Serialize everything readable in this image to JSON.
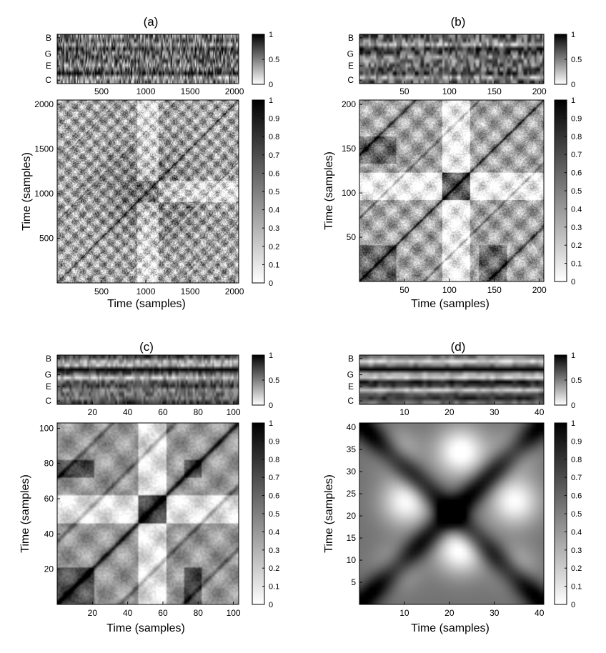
{
  "figure": {
    "panels": [
      {
        "label": "(a)",
        "x_ticks": [
          500,
          1000,
          1500,
          2000
        ],
        "y_ticks": [
          500,
          1000,
          1500,
          2000
        ],
        "axis_max": 2048,
        "note_labels": [
          "B",
          "G",
          "E",
          "C"
        ],
        "xlabel": "Time (samples)",
        "ylabel": "Time (samples)",
        "chroma_res": 256,
        "ssm_res": 256,
        "chroma_sharpness": 0.75,
        "ssm_sharpness": 0.9
      },
      {
        "label": "(b)",
        "x_ticks": [
          50,
          100,
          150,
          200
        ],
        "y_ticks": [
          50,
          100,
          150,
          200
        ],
        "axis_max": 205,
        "note_labels": [
          "B",
          "G",
          "E",
          "C"
        ],
        "xlabel": "Time (samples)",
        "ylabel": "Time (samples)",
        "chroma_res": 100,
        "ssm_res": 205,
        "chroma_sharpness": 0.6,
        "ssm_sharpness": 0.7
      },
      {
        "label": "(c)",
        "x_ticks": [
          20,
          40,
          60,
          80,
          100
        ],
        "y_ticks": [
          20,
          40,
          60,
          80,
          100
        ],
        "axis_max": 103,
        "note_labels": [
          "B",
          "G",
          "E",
          "C"
        ],
        "xlabel": "Time (samples)",
        "ylabel": "Time (samples)",
        "chroma_res": 103,
        "ssm_res": 103,
        "chroma_sharpness": 0.4,
        "ssm_sharpness": 0.45
      },
      {
        "label": "(d)",
        "x_ticks": [
          10,
          20,
          30,
          40
        ],
        "y_ticks": [
          5,
          10,
          15,
          20,
          25,
          30,
          35,
          40
        ],
        "axis_max": 41,
        "note_labels": [
          "B",
          "G",
          "E",
          "C"
        ],
        "xlabel": "Time (samples)",
        "ylabel": "Time (samples)",
        "chroma_res": 41,
        "ssm_res": 41,
        "chroma_sharpness": 0.25,
        "ssm_sharpness": 0.2
      }
    ],
    "colorbar_small_ticks": [
      "1",
      "0.5",
      "0"
    ],
    "colorbar_small_values": [
      1,
      0.5,
      0
    ],
    "colorbar_large_ticks": [
      "1",
      "0.9",
      "0.8",
      "0.7",
      "0.6",
      "0.5",
      "0.4",
      "0.3",
      "0.2",
      "0.1",
      "0"
    ],
    "colorbar_large_values": [
      1,
      0.9,
      0.8,
      0.7,
      0.6,
      0.5,
      0.4,
      0.3,
      0.2,
      0.1,
      0
    ]
  },
  "chart_data": [
    {
      "type": "heatmap",
      "title": "(a)",
      "subplot": "chromagram",
      "y_tick_labels": [
        "B",
        "G",
        "E",
        "C"
      ],
      "x_ticks": [
        500,
        1000,
        1500,
        2000
      ],
      "colorbar_range": [
        0,
        1
      ]
    },
    {
      "type": "heatmap",
      "title": "(a)",
      "subplot": "self-similarity matrix",
      "xlabel": "Time (samples)",
      "ylabel": "Time (samples)",
      "x_ticks": [
        500,
        1000,
        1500,
        2000
      ],
      "y_ticks": [
        500,
        1000,
        1500,
        2000
      ],
      "colorbar_range": [
        0,
        1
      ]
    },
    {
      "type": "heatmap",
      "title": "(b)",
      "subplot": "chromagram",
      "y_tick_labels": [
        "B",
        "G",
        "E",
        "C"
      ],
      "x_ticks": [
        50,
        100,
        150,
        200
      ],
      "colorbar_range": [
        0,
        1
      ]
    },
    {
      "type": "heatmap",
      "title": "(b)",
      "subplot": "self-similarity matrix",
      "xlabel": "Time (samples)",
      "ylabel": "Time (samples)",
      "x_ticks": [
        50,
        100,
        150,
        200
      ],
      "y_ticks": [
        50,
        100,
        150,
        200
      ],
      "colorbar_range": [
        0,
        1
      ]
    },
    {
      "type": "heatmap",
      "title": "(c)",
      "subplot": "chromagram",
      "y_tick_labels": [
        "B",
        "G",
        "E",
        "C"
      ],
      "x_ticks": [
        20,
        40,
        60,
        80,
        100
      ],
      "colorbar_range": [
        0,
        1
      ]
    },
    {
      "type": "heatmap",
      "title": "(c)",
      "subplot": "self-similarity matrix",
      "xlabel": "Time (samples)",
      "ylabel": "Time (samples)",
      "x_ticks": [
        20,
        40,
        60,
        80,
        100
      ],
      "y_ticks": [
        20,
        40,
        60,
        80,
        100
      ],
      "colorbar_range": [
        0,
        1
      ]
    },
    {
      "type": "heatmap",
      "title": "(d)",
      "subplot": "chromagram",
      "y_tick_labels": [
        "B",
        "G",
        "E",
        "C"
      ],
      "x_ticks": [
        10,
        20,
        30,
        40
      ],
      "colorbar_range": [
        0,
        1
      ]
    },
    {
      "type": "heatmap",
      "title": "(d)",
      "subplot": "self-similarity matrix",
      "xlabel": "Time (samples)",
      "ylabel": "Time (samples)",
      "x_ticks": [
        10,
        20,
        30,
        40
      ],
      "y_ticks": [
        5,
        10,
        15,
        20,
        25,
        30,
        35,
        40
      ],
      "colorbar_range": [
        0,
        1
      ]
    }
  ]
}
